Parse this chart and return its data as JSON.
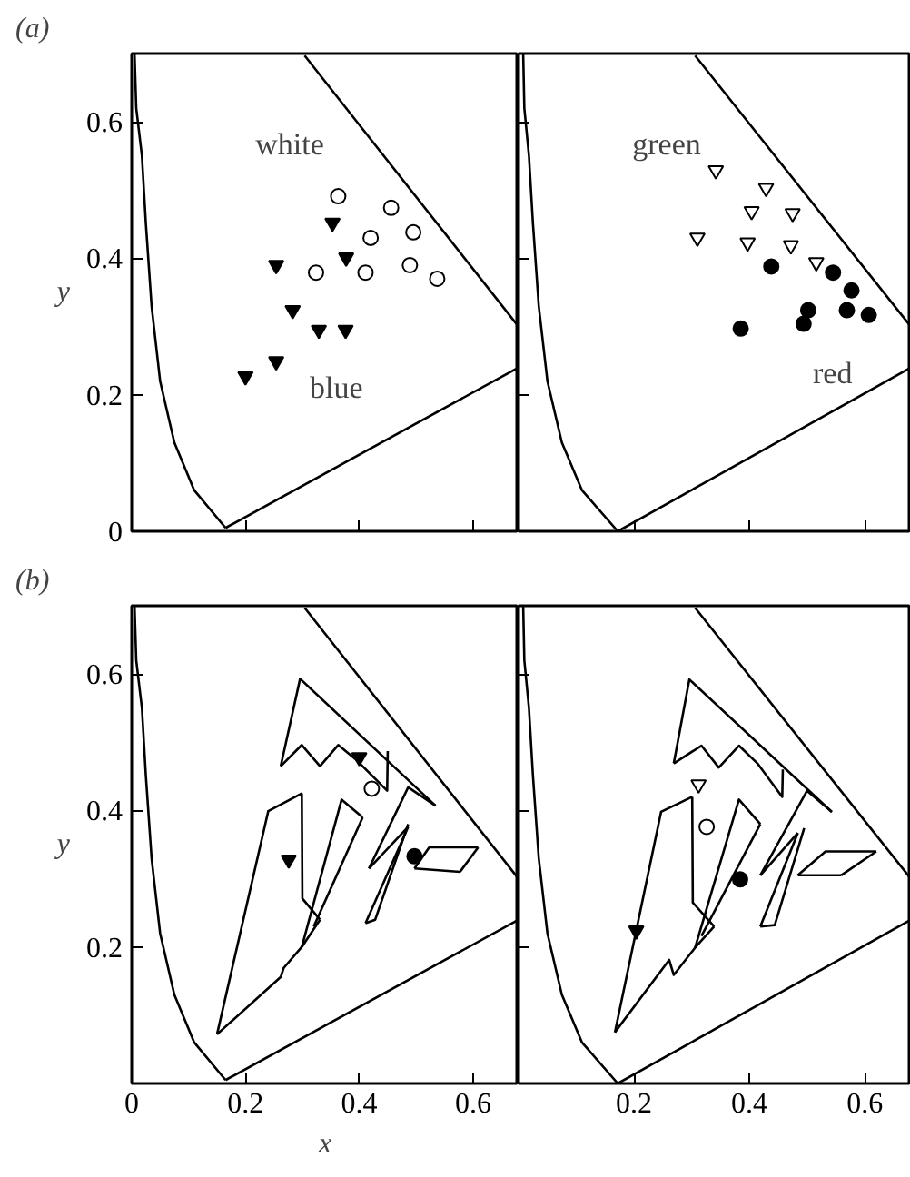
{
  "chart_data": [
    {
      "type": "scatter",
      "title": "(a)",
      "ylabel": "y",
      "xlim": [
        0,
        0.68
      ],
      "ylim": [
        0,
        0.7
      ],
      "xticks": [
        0.2,
        0.4,
        0.6
      ],
      "yticks": [
        0,
        0.2,
        0.4,
        0.6
      ],
      "tick_labels": "y",
      "annotations": [
        "white",
        "blue"
      ],
      "series": [
        {
          "type": "line",
          "color": "#000000",
          "x": [
            0.165,
            0.11,
            0.075,
            0.05,
            0.035,
            0.025,
            0.018,
            0.008,
            0.005
          ],
          "values": [
            0.005,
            0.06,
            0.13,
            0.22,
            0.33,
            0.45,
            0.55,
            0.62,
            0.7
          ]
        },
        {
          "type": "line",
          "color": "#000000",
          "x": [
            0.304,
            0.68
          ],
          "values": [
            0.697,
            0.3
          ]
        },
        {
          "type": "line",
          "color": "#000000",
          "x": [
            0.165,
            0.68
          ],
          "values": [
            0.005,
            0.24
          ]
        },
        {
          "marker": "triangle",
          "color": "#000000",
          "x": [
            0.353,
            0.254,
            0.377,
            0.283,
            0.329,
            0.376,
            0.254,
            0.2
          ],
          "values": [
            0.452,
            0.39,
            0.401,
            0.324,
            0.295,
            0.295,
            0.249,
            0.227
          ]
        },
        {
          "marker": "circle",
          "color": "#ffffff",
          "x": [
            0.363,
            0.456,
            0.42,
            0.495,
            0.324,
            0.411,
            0.489,
            0.537
          ],
          "values": [
            0.491,
            0.474,
            0.43,
            0.438,
            0.379,
            0.379,
            0.39,
            0.37
          ]
        }
      ]
    },
    {
      "type": "scatter",
      "xlim": [
        0,
        0.68
      ],
      "ylim": [
        0,
        0.7
      ],
      "xticks": [
        0.2,
        0.4,
        0.6
      ],
      "yticks": [
        0.2,
        0.4,
        0.6
      ],
      "tick_labels": false,
      "annotations": [
        "green",
        "red"
      ],
      "series": [
        {
          "type": "line",
          "color": "#000000",
          "x": [
            0.172,
            0.11,
            0.075,
            0.05,
            0.035,
            0.025,
            0.018,
            0.01,
            0.008
          ],
          "values": [
            0.0,
            0.06,
            0.13,
            0.22,
            0.33,
            0.45,
            0.55,
            0.62,
            0.7
          ]
        },
        {
          "type": "line",
          "color": "#000000",
          "x": [
            0.306,
            0.68
          ],
          "values": [
            0.697,
            0.3
          ]
        },
        {
          "type": "line",
          "color": "#000000",
          "x": [
            0.172,
            0.68
          ],
          "values": [
            0.0,
            0.24
          ]
        },
        {
          "marker": "triangle",
          "color": "#ffffff",
          "x": [
            0.342,
            0.429,
            0.404,
            0.475,
            0.31,
            0.397,
            0.472,
            0.516
          ],
          "values": [
            0.529,
            0.503,
            0.469,
            0.466,
            0.43,
            0.423,
            0.419,
            0.394
          ]
        },
        {
          "marker": "circle",
          "color": "#000000",
          "x": [
            0.438,
            0.545,
            0.577,
            0.502,
            0.569,
            0.607,
            0.494,
            0.385
          ],
          "values": [
            0.388,
            0.379,
            0.353,
            0.324,
            0.324,
            0.317,
            0.304,
            0.297
          ]
        }
      ]
    },
    {
      "type": "line",
      "title": "(b)",
      "ylabel": "y",
      "xlabel": "x",
      "xlim": [
        0,
        0.68
      ],
      "ylim": [
        0,
        0.7
      ],
      "xticks": [
        0,
        0.2,
        0.4,
        0.6
      ],
      "yticks": [
        0.2,
        0.4,
        0.6
      ],
      "series": [
        {
          "color": "#000000",
          "x": [
            0.165,
            0.11,
            0.075,
            0.05,
            0.035,
            0.025,
            0.018,
            0.008,
            0.005
          ],
          "values": [
            0.005,
            0.06,
            0.13,
            0.22,
            0.33,
            0.45,
            0.55,
            0.62,
            0.7
          ]
        },
        {
          "color": "#000000",
          "x": [
            0.304,
            0.68
          ],
          "values": [
            0.697,
            0.3
          ]
        },
        {
          "color": "#000000",
          "x": [
            0.165,
            0.68
          ],
          "values": [
            0.005,
            0.24
          ]
        },
        {
          "color": "#000000",
          "x": [
            0.15,
            0.24,
            0.299
          ],
          "values": [
            0.072,
            0.399,
            0.425
          ]
        },
        {
          "color": "#000000",
          "x": [
            0.299,
            0.3,
            0.331
          ],
          "values": [
            0.425,
            0.271,
            0.24
          ]
        },
        {
          "color": "#000000",
          "x": [
            0.15,
            0.262,
            0.267,
            0.299,
            0.331
          ],
          "values": [
            0.072,
            0.156,
            0.169,
            0.2,
            0.24
          ]
        },
        {
          "color": "#000000",
          "x": [
            0.299,
            0.369,
            0.406
          ],
          "values": [
            0.2,
            0.416,
            0.39
          ]
        },
        {
          "color": "#000000",
          "x": [
            0.32,
            0.406
          ],
          "values": [
            0.23,
            0.39
          ]
        },
        {
          "color": "#000000",
          "x": [
            0.262,
            0.296,
            0.534
          ],
          "values": [
            0.465,
            0.593,
            0.407
          ]
        },
        {
          "color": "#000000",
          "x": [
            0.417,
            0.486,
            0.534
          ],
          "values": [
            0.315,
            0.434,
            0.407
          ]
        },
        {
          "color": "#000000",
          "x": [
            0.417,
            0.486
          ],
          "values": [
            0.315,
            0.376
          ]
        },
        {
          "color": "#000000",
          "x": [
            0.411,
            0.486
          ],
          "values": [
            0.235,
            0.376
          ]
        },
        {
          "color": "#000000",
          "x": [
            0.411,
            0.428,
            0.486
          ],
          "values": [
            0.235,
            0.24,
            0.38
          ]
        },
        {
          "color": "#000000",
          "x": [
            0.262,
            0.299,
            0.331,
            0.363,
            0.395,
            0.449,
            0.45
          ],
          "values": [
            0.465,
            0.496,
            0.465,
            0.496,
            0.474,
            0.429,
            0.487
          ]
        },
        {
          "color": "#000000",
          "x": [
            0.497,
            0.523,
            0.609
          ],
          "values": [
            0.315,
            0.346,
            0.346
          ]
        },
        {
          "color": "#000000",
          "x": [
            0.577,
            0.609
          ],
          "values": [
            0.31,
            0.346
          ]
        },
        {
          "color": "#000000",
          "x": [
            0.497,
            0.577
          ],
          "values": [
            0.315,
            0.31
          ]
        },
        {
          "type": "scatter",
          "marker": "triangle",
          "color": "#000000",
          "x": [
            0.276
          ],
          "values": [
            0.328
          ]
        },
        {
          "type": "scatter",
          "marker": "circle",
          "color": "#ffffff",
          "x": [
            0.422
          ],
          "values": [
            0.432
          ]
        },
        {
          "type": "scatter",
          "marker": "triangle",
          "color": "#000000",
          "x": [
            0.4
          ],
          "values": [
            0.478
          ]
        },
        {
          "type": "scatter",
          "marker": "circle",
          "color": "#000000",
          "x": [
            0.497
          ],
          "values": [
            0.333
          ]
        }
      ]
    },
    {
      "type": "line",
      "xlim": [
        0,
        0.68
      ],
      "ylim": [
        0,
        0.7
      ],
      "xticks": [
        0.2,
        0.4,
        0.6
      ],
      "yticks": [
        0.2,
        0.4,
        0.6
      ],
      "tick_labels": "x",
      "series": [
        {
          "color": "#000000",
          "x": [
            0.172,
            0.11,
            0.075,
            0.05,
            0.035,
            0.025,
            0.018,
            0.01,
            0.008
          ],
          "values": [
            0.0,
            0.06,
            0.13,
            0.22,
            0.33,
            0.45,
            0.55,
            0.62,
            0.7
          ]
        },
        {
          "color": "#000000",
          "x": [
            0.306,
            0.68
          ],
          "values": [
            0.697,
            0.3
          ]
        },
        {
          "color": "#000000",
          "x": [
            0.172,
            0.68
          ],
          "values": [
            0.0,
            0.24
          ]
        },
        {
          "color": "#000000",
          "x": [
            0.167,
            0.247,
            0.301
          ],
          "values": [
            0.075,
            0.398,
            0.42
          ]
        },
        {
          "color": "#000000",
          "x": [
            0.301,
            0.302,
            0.339
          ],
          "values": [
            0.42,
            0.265,
            0.23
          ]
        },
        {
          "color": "#000000",
          "x": [
            0.167,
            0.261,
            0.269,
            0.306,
            0.339
          ],
          "values": [
            0.075,
            0.181,
            0.159,
            0.199,
            0.23
          ]
        },
        {
          "color": "#000000",
          "x": [
            0.306,
            0.382,
            0.419
          ],
          "values": [
            0.199,
            0.416,
            0.38
          ]
        },
        {
          "color": "#000000",
          "x": [
            0.317,
            0.419
          ],
          "values": [
            0.216,
            0.38
          ]
        },
        {
          "color": "#000000",
          "x": [
            0.269,
            0.296,
            0.543
          ],
          "values": [
            0.469,
            0.592,
            0.398
          ]
        },
        {
          "color": "#000000",
          "x": [
            0.419,
            0.5,
            0.543
          ],
          "values": [
            0.305,
            0.429,
            0.398
          ]
        },
        {
          "color": "#000000",
          "x": [
            0.419,
            0.484
          ],
          "values": [
            0.305,
            0.367
          ]
        },
        {
          "color": "#000000",
          "x": [
            0.419,
            0.484
          ],
          "values": [
            0.23,
            0.367
          ]
        },
        {
          "color": "#000000",
          "x": [
            0.419,
            0.444,
            0.495
          ],
          "values": [
            0.23,
            0.232,
            0.374
          ]
        },
        {
          "color": "#000000",
          "x": [
            0.269,
            0.317,
            0.347,
            0.382,
            0.414,
            0.457,
            0.458
          ],
          "values": [
            0.469,
            0.495,
            0.463,
            0.495,
            0.469,
            0.42,
            0.46
          ]
        },
        {
          "color": "#000000",
          "x": [
            0.484,
            0.532,
            0.62
          ],
          "values": [
            0.305,
            0.34,
            0.34
          ]
        },
        {
          "color": "#000000",
          "x": [
            0.559,
            0.62
          ],
          "values": [
            0.305,
            0.34
          ]
        },
        {
          "color": "#000000",
          "x": [
            0.484,
            0.559
          ],
          "values": [
            0.305,
            0.305
          ]
        },
        {
          "type": "scatter",
          "marker": "triangle",
          "color": "#000000",
          "x": [
            0.204
          ],
          "values": [
            0.224
          ]
        },
        {
          "type": "scatter",
          "marker": "circle",
          "color": "#ffffff",
          "x": [
            0.326
          ],
          "values": [
            0.376
          ]
        },
        {
          "type": "scatter",
          "marker": "triangle",
          "color": "#ffffff",
          "x": [
            0.312
          ],
          "values": [
            0.438
          ]
        },
        {
          "type": "scatter",
          "marker": "circle",
          "color": "#000000",
          "x": [
            0.384
          ],
          "values": [
            0.299
          ]
        }
      ]
    }
  ]
}
